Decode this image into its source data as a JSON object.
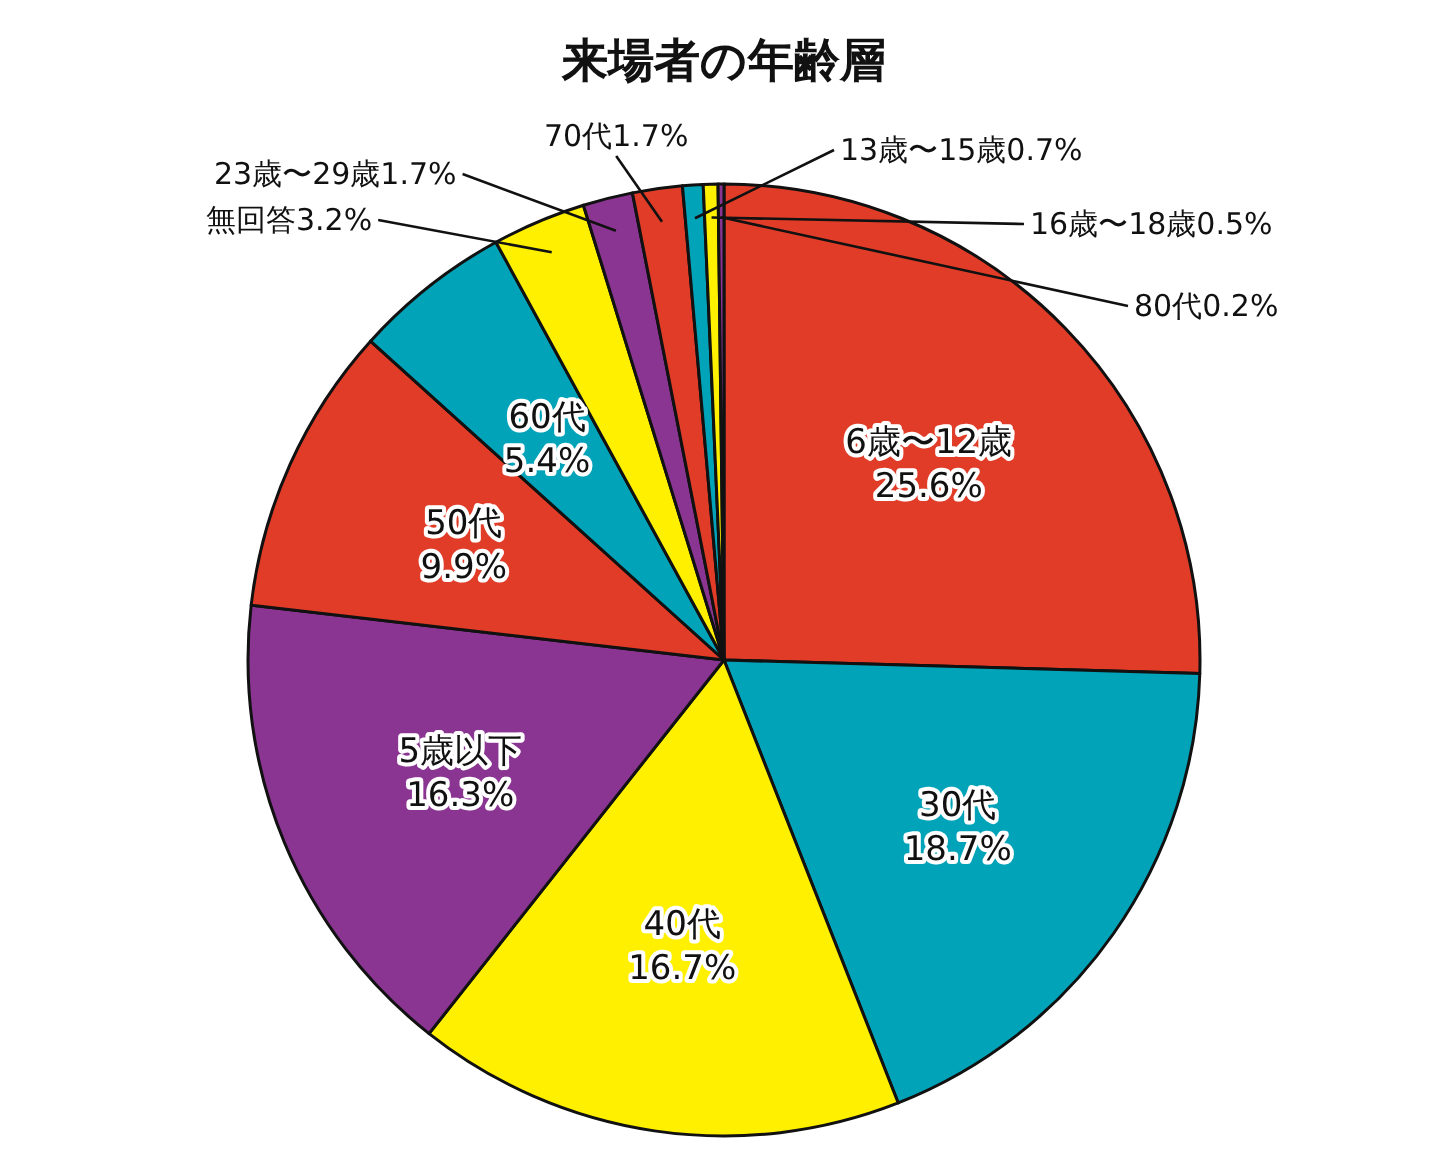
{
  "chart_data": {
    "type": "pie",
    "title": "来場者の年齢層",
    "categories": [
      "6歳〜12歳",
      "30代",
      "40代",
      "5歳以下",
      "50代",
      "60代",
      "無回答",
      "23歳〜29歳",
      "70代",
      "13歳〜15歳",
      "16歳〜18歳",
      "80代"
    ],
    "values": [
      25.6,
      18.7,
      16.7,
      16.3,
      9.9,
      5.4,
      3.2,
      1.7,
      1.7,
      0.7,
      0.5,
      0.2
    ],
    "colors": [
      "#e03c28",
      "#00a3b8",
      "#fff000",
      "#8b3593",
      "#e03c28",
      "#00a3b8",
      "#fff000",
      "#8b3593",
      "#e03c28",
      "#00a3b8",
      "#fff000",
      "#8b3593"
    ],
    "value_labels": [
      "25.6%",
      "18.7%",
      "16.7%",
      "16.3%",
      "9.9%",
      "5.4%",
      "3.2%",
      "1.7%",
      "1.7%",
      "0.7%",
      "0.5%",
      "0.2%"
    ]
  }
}
